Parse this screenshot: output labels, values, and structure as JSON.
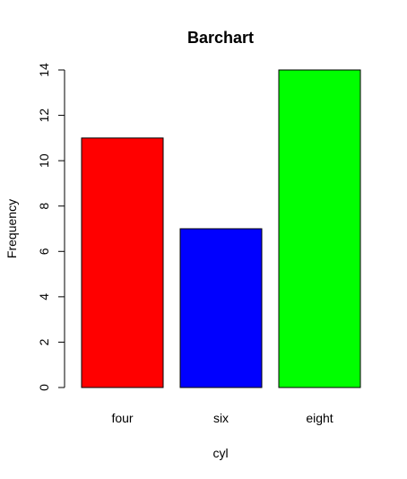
{
  "chart_data": {
    "type": "bar",
    "title": "Barchart",
    "xlabel": "cyl",
    "ylabel": "Frequency",
    "categories": [
      "four",
      "six",
      "eight"
    ],
    "values": [
      11,
      7,
      14
    ],
    "colors": [
      "#ff0000",
      "#0000ff",
      "#00ff00"
    ],
    "ylim": [
      0,
      14
    ],
    "yticks": [
      0,
      2,
      4,
      6,
      8,
      10,
      12,
      14
    ],
    "grid": false,
    "legend": "none"
  }
}
